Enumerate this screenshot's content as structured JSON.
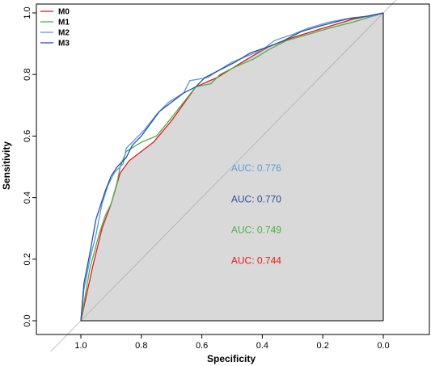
{
  "chart_data": {
    "type": "line",
    "title": "",
    "xlabel": "Specificity",
    "ylabel": "Sensitivity",
    "xlim": [
      1.1,
      -0.1
    ],
    "ylim": [
      0.0,
      1.0
    ],
    "x_ticks": [
      1.0,
      0.8,
      0.6,
      0.4,
      0.2,
      0.0
    ],
    "x_tick_labels": [
      "1.0",
      "0.8",
      "0.6",
      "0.4",
      "0.2",
      "0.0"
    ],
    "y_ticks": [
      0.0,
      0.2,
      0.4,
      0.6,
      0.8,
      1.0
    ],
    "y_tick_labels": [
      "0.0",
      "0.2",
      "0.4",
      "0.6",
      "0.8",
      "1.0"
    ],
    "x_reversed": true,
    "grid": false,
    "legend_position": "top-left",
    "shaded_auc_area": true,
    "shade_color": "#d9d9d9",
    "reference_line": {
      "from": [
        1.0,
        0.0
      ],
      "to": [
        0.0,
        1.0
      ],
      "color": "#aaaaaa"
    },
    "series": [
      {
        "name": "M0",
        "color": "#e41a1c",
        "auc_label": "AUC: 0.744",
        "points": [
          [
            1.0,
            0.0
          ],
          [
            0.96,
            0.18
          ],
          [
            0.93,
            0.3
          ],
          [
            0.9,
            0.38
          ],
          [
            0.87,
            0.48
          ],
          [
            0.84,
            0.52
          ],
          [
            0.76,
            0.58
          ],
          [
            0.7,
            0.65
          ],
          [
            0.62,
            0.76
          ],
          [
            0.55,
            0.79
          ],
          [
            0.45,
            0.85
          ],
          [
            0.38,
            0.89
          ],
          [
            0.3,
            0.92
          ],
          [
            0.2,
            0.95
          ],
          [
            0.1,
            0.98
          ],
          [
            0.0,
            1.0
          ]
        ]
      },
      {
        "name": "M1",
        "color": "#4daf4a",
        "auc_label": "AUC: 0.749",
        "points": [
          [
            1.0,
            0.0
          ],
          [
            0.97,
            0.17
          ],
          [
            0.94,
            0.28
          ],
          [
            0.92,
            0.34
          ],
          [
            0.9,
            0.38
          ],
          [
            0.88,
            0.45
          ],
          [
            0.87,
            0.5
          ],
          [
            0.85,
            0.55
          ],
          [
            0.8,
            0.58
          ],
          [
            0.75,
            0.6
          ],
          [
            0.7,
            0.66
          ],
          [
            0.62,
            0.76
          ],
          [
            0.57,
            0.77
          ],
          [
            0.54,
            0.8
          ],
          [
            0.5,
            0.82
          ],
          [
            0.43,
            0.85
          ],
          [
            0.38,
            0.88
          ],
          [
            0.32,
            0.91
          ],
          [
            0.25,
            0.93
          ],
          [
            0.18,
            0.95
          ],
          [
            0.1,
            0.97
          ],
          [
            0.0,
            1.0
          ]
        ]
      },
      {
        "name": "M2",
        "color": "#5b9bd5",
        "auc_label": "AUC: 0.776",
        "points": [
          [
            1.0,
            0.0
          ],
          [
            0.99,
            0.1
          ],
          [
            0.97,
            0.2
          ],
          [
            0.95,
            0.28
          ],
          [
            0.93,
            0.38
          ],
          [
            0.91,
            0.44
          ],
          [
            0.89,
            0.48
          ],
          [
            0.86,
            0.51
          ],
          [
            0.85,
            0.56
          ],
          [
            0.82,
            0.59
          ],
          [
            0.79,
            0.62
          ],
          [
            0.75,
            0.67
          ],
          [
            0.71,
            0.71
          ],
          [
            0.66,
            0.74
          ],
          [
            0.64,
            0.78
          ],
          [
            0.58,
            0.79
          ],
          [
            0.55,
            0.81
          ],
          [
            0.5,
            0.84
          ],
          [
            0.45,
            0.86
          ],
          [
            0.4,
            0.88
          ],
          [
            0.36,
            0.91
          ],
          [
            0.3,
            0.93
          ],
          [
            0.25,
            0.95
          ],
          [
            0.18,
            0.97
          ],
          [
            0.1,
            0.985
          ],
          [
            0.03,
            0.99
          ],
          [
            0.0,
            1.0
          ]
        ]
      },
      {
        "name": "M3",
        "color": "#2c4fa3",
        "auc_label": "AUC: 0.770",
        "points": [
          [
            1.0,
            0.0
          ],
          [
            0.99,
            0.12
          ],
          [
            0.97,
            0.22
          ],
          [
            0.95,
            0.33
          ],
          [
            0.92,
            0.42
          ],
          [
            0.9,
            0.47
          ],
          [
            0.88,
            0.5
          ],
          [
            0.85,
            0.53
          ],
          [
            0.83,
            0.57
          ],
          [
            0.8,
            0.6
          ],
          [
            0.77,
            0.64
          ],
          [
            0.74,
            0.68
          ],
          [
            0.7,
            0.71
          ],
          [
            0.66,
            0.74
          ],
          [
            0.62,
            0.76
          ],
          [
            0.59,
            0.79
          ],
          [
            0.55,
            0.81
          ],
          [
            0.49,
            0.84
          ],
          [
            0.44,
            0.87
          ],
          [
            0.38,
            0.89
          ],
          [
            0.33,
            0.91
          ],
          [
            0.27,
            0.94
          ],
          [
            0.2,
            0.96
          ],
          [
            0.12,
            0.98
          ],
          [
            0.05,
            0.99
          ],
          [
            0.0,
            1.0
          ]
        ]
      }
    ],
    "auc_annotations": [
      {
        "series": "M2",
        "text": "AUC: 0.776",
        "x": 0.42,
        "y": 0.485,
        "color": "#5b9bd5"
      },
      {
        "series": "M3",
        "text": "AUC: 0.770",
        "x": 0.42,
        "y": 0.385,
        "color": "#2c4fa3"
      },
      {
        "series": "M1",
        "text": "AUC: 0.749",
        "x": 0.42,
        "y": 0.285,
        "color": "#4daf4a"
      },
      {
        "series": "M0",
        "text": "AUC: 0.744",
        "x": 0.42,
        "y": 0.185,
        "color": "#e41a1c"
      }
    ]
  }
}
